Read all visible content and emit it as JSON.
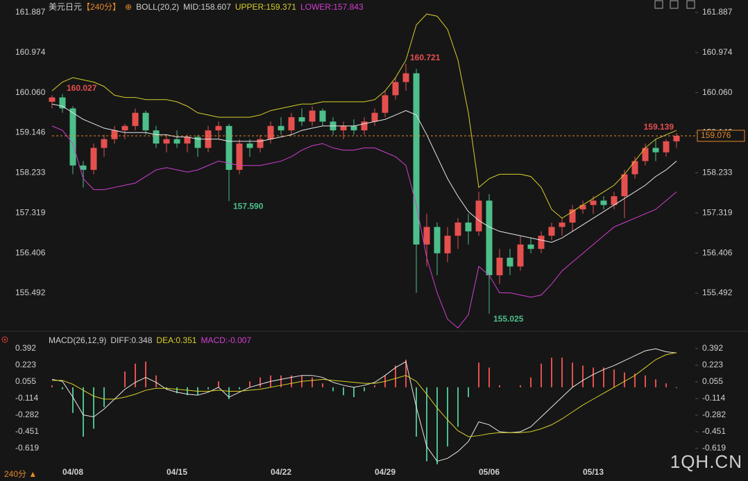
{
  "chart_data": [
    {
      "type": "candlestick",
      "title": "美元日元",
      "period": "【240分】",
      "indicator": "BOLL(20,2)",
      "ylim": [
        154.75,
        162.09
      ],
      "yticks": [
        {
          "value": 161.887,
          "label": "161.887"
        },
        {
          "value": 160.974,
          "label": "160.974"
        },
        {
          "value": 160.06,
          "label": "160.060"
        },
        {
          "value": 159.146,
          "label": "159.146"
        },
        {
          "value": 158.233,
          "label": "158.233"
        },
        {
          "value": 157.319,
          "label": "157.319"
        },
        {
          "value": 156.406,
          "label": "156.406"
        },
        {
          "value": 155.492,
          "label": "155.492"
        }
      ],
      "up_color": "#e5504f",
      "down_color": "#4dbf8b",
      "ohlc": [
        [
          159.85,
          160.0,
          159.7,
          159.95
        ],
        [
          159.95,
          160.027,
          159.6,
          159.7
        ],
        [
          159.7,
          159.75,
          158.2,
          158.4
        ],
        [
          158.4,
          158.5,
          157.9,
          158.3
        ],
        [
          158.3,
          158.9,
          158.2,
          158.8
        ],
        [
          158.8,
          159.1,
          158.6,
          159.0
        ],
        [
          159.0,
          159.3,
          158.9,
          159.2
        ],
        [
          159.2,
          159.35,
          159.0,
          159.3
        ],
        [
          159.3,
          159.7,
          159.2,
          159.6
        ],
        [
          159.6,
          159.65,
          159.1,
          159.2
        ],
        [
          159.2,
          159.3,
          158.8,
          158.9
        ],
        [
          158.9,
          159.1,
          158.7,
          159.0
        ],
        [
          159.0,
          159.2,
          158.8,
          158.9
        ],
        [
          158.9,
          159.1,
          158.7,
          159.05
        ],
        [
          159.05,
          159.1,
          158.6,
          158.8
        ],
        [
          158.8,
          159.3,
          158.7,
          159.2
        ],
        [
          159.2,
          159.4,
          159.0,
          159.3
        ],
        [
          159.3,
          159.35,
          157.59,
          158.3
        ],
        [
          158.3,
          159.0,
          158.2,
          158.9
        ],
        [
          158.9,
          159.0,
          158.6,
          158.8
        ],
        [
          158.8,
          159.1,
          158.7,
          159.0
        ],
        [
          159.0,
          159.4,
          158.9,
          159.3
        ],
        [
          159.3,
          159.5,
          159.1,
          159.2
        ],
        [
          159.2,
          159.6,
          159.1,
          159.5
        ],
        [
          159.5,
          159.7,
          159.3,
          159.4
        ],
        [
          159.4,
          159.75,
          159.3,
          159.65
        ],
        [
          159.65,
          159.7,
          159.3,
          159.4
        ],
        [
          159.4,
          159.5,
          159.1,
          159.2
        ],
        [
          159.2,
          159.4,
          159.0,
          159.3
        ],
        [
          159.3,
          159.45,
          159.1,
          159.2
        ],
        [
          159.2,
          159.5,
          159.1,
          159.4
        ],
        [
          159.4,
          159.7,
          159.3,
          159.6
        ],
        [
          159.6,
          160.1,
          159.5,
          160.0
        ],
        [
          160.0,
          160.4,
          159.9,
          160.3
        ],
        [
          160.3,
          160.721,
          160.1,
          160.5
        ],
        [
          160.5,
          160.6,
          155.5,
          156.6
        ],
        [
          156.6,
          157.3,
          156.1,
          157.0
        ],
        [
          157.0,
          157.1,
          155.9,
          156.4
        ],
        [
          156.4,
          157.0,
          156.2,
          156.8
        ],
        [
          156.8,
          157.2,
          156.5,
          157.1
        ],
        [
          157.1,
          157.3,
          156.6,
          156.9
        ],
        [
          156.9,
          157.8,
          156.8,
          157.6
        ],
        [
          157.6,
          157.75,
          155.025,
          155.9
        ],
        [
          155.9,
          156.5,
          155.7,
          156.3
        ],
        [
          156.3,
          156.5,
          155.9,
          156.1
        ],
        [
          156.1,
          156.8,
          156.0,
          156.6
        ],
        [
          156.6,
          156.75,
          156.4,
          156.5
        ],
        [
          156.5,
          156.9,
          156.4,
          156.8
        ],
        [
          156.8,
          157.1,
          156.7,
          157.0
        ],
        [
          157.0,
          157.2,
          156.8,
          157.1
        ],
        [
          157.1,
          157.5,
          156.9,
          157.4
        ],
        [
          157.4,
          157.6,
          157.3,
          157.5
        ],
        [
          157.5,
          157.7,
          157.3,
          157.6
        ],
        [
          157.6,
          157.7,
          157.4,
          157.5
        ],
        [
          157.5,
          157.8,
          157.4,
          157.7
        ],
        [
          157.7,
          158.3,
          157.2,
          158.2
        ],
        [
          158.2,
          158.6,
          158.1,
          158.5
        ],
        [
          158.5,
          158.9,
          158.4,
          158.8
        ],
        [
          158.8,
          159.0,
          158.5,
          158.7
        ],
        [
          158.7,
          159.0,
          158.6,
          158.95
        ],
        [
          158.95,
          159.139,
          158.8,
          159.076
        ]
      ],
      "series": [
        {
          "name": "MID:158.607",
          "color": "#e8e8e8",
          "values": [
            159.8,
            159.75,
            159.6,
            159.45,
            159.35,
            159.25,
            159.2,
            159.15,
            159.15,
            159.15,
            159.1,
            159.1,
            159.05,
            159.05,
            159.0,
            159.0,
            159.0,
            158.95,
            158.95,
            158.95,
            158.95,
            159.0,
            159.05,
            159.1,
            159.2,
            159.25,
            159.3,
            159.3,
            159.3,
            159.3,
            159.35,
            159.4,
            159.45,
            159.55,
            159.65,
            159.55,
            159.1,
            158.6,
            158.1,
            157.7,
            157.35,
            157.15,
            157.0,
            156.9,
            156.85,
            156.8,
            156.75,
            156.7,
            156.65,
            156.75,
            156.9,
            157.05,
            157.2,
            157.35,
            157.5,
            157.65,
            157.8,
            157.95,
            158.15,
            158.3,
            158.5
          ]
        },
        {
          "name": "UPPER:159.371",
          "color": "#d9cf2a",
          "values": [
            160.1,
            160.3,
            160.4,
            160.35,
            160.3,
            160.2,
            160.0,
            159.95,
            159.95,
            159.9,
            159.9,
            159.9,
            159.85,
            159.75,
            159.6,
            159.55,
            159.5,
            159.5,
            159.5,
            159.5,
            159.55,
            159.65,
            159.7,
            159.75,
            159.8,
            159.8,
            159.85,
            159.85,
            159.85,
            159.85,
            159.85,
            159.9,
            160.1,
            160.4,
            160.8,
            161.6,
            161.85,
            161.8,
            161.5,
            160.8,
            159.6,
            157.9,
            158.1,
            158.2,
            158.2,
            158.2,
            158.15,
            157.9,
            157.4,
            157.2,
            157.35,
            157.5,
            157.65,
            157.8,
            157.95,
            158.2,
            158.5,
            158.8,
            159.0,
            159.1,
            159.2
          ]
        },
        {
          "name": "LOWER:157.843",
          "color": "#d23fd2",
          "values": [
            159.3,
            159.2,
            158.9,
            158.1,
            157.85,
            157.85,
            157.9,
            157.95,
            158.0,
            158.15,
            158.3,
            158.35,
            158.3,
            158.25,
            158.3,
            158.4,
            158.5,
            158.45,
            158.4,
            158.4,
            158.4,
            158.45,
            158.5,
            158.6,
            158.75,
            158.85,
            158.9,
            158.8,
            158.75,
            158.75,
            158.8,
            158.8,
            158.7,
            158.6,
            158.4,
            157.5,
            156.3,
            155.5,
            154.9,
            154.7,
            155.0,
            156.1,
            155.9,
            155.5,
            155.5,
            155.45,
            155.4,
            155.45,
            155.7,
            156.0,
            156.2,
            156.4,
            156.6,
            156.8,
            157.0,
            157.1,
            157.2,
            157.3,
            157.4,
            157.6,
            157.8
          ]
        }
      ],
      "annotations": [
        {
          "value": 160.027,
          "label": "160.027"
        },
        {
          "value": 157.59,
          "label": "157.590"
        },
        {
          "value": 160.721,
          "label": "160.721"
        },
        {
          "value": 155.025,
          "label": "155.025"
        },
        {
          "value": 159.139,
          "label": "159.139"
        }
      ],
      "last_price": 159.076,
      "last_color": "#e58a2a"
    },
    {
      "type": "macd",
      "title": "MACD(26,12,9)",
      "ylim": [
        -0.795,
        0.483
      ],
      "yticks": [
        0.392,
        0.223,
        0.055,
        -0.114,
        -0.282,
        -0.451,
        -0.619
      ],
      "categories": [
        null,
        null,
        "04/08",
        null,
        null,
        null,
        null,
        null,
        null,
        null,
        null,
        null,
        "04/15",
        null,
        null,
        null,
        null,
        null,
        null,
        null,
        null,
        null,
        "04/22",
        null,
        null,
        null,
        null,
        null,
        null,
        null,
        null,
        null,
        "04/29",
        null,
        null,
        null,
        null,
        null,
        null,
        null,
        null,
        null,
        "05/06",
        null,
        null,
        null,
        null,
        null,
        null,
        null,
        null,
        null,
        "05/13",
        null,
        null,
        null,
        null,
        null,
        null,
        null,
        null
      ],
      "series": [
        {
          "name": "DIFF:0.348",
          "color": "#e8e8e8",
          "values": [
            0.08,
            0.06,
            -0.1,
            -0.28,
            -0.3,
            -0.22,
            -0.12,
            -0.02,
            0.05,
            0.1,
            0.05,
            -0.02,
            -0.05,
            -0.07,
            -0.08,
            -0.05,
            0.0,
            -0.1,
            -0.05,
            0.0,
            0.03,
            0.06,
            0.08,
            0.1,
            0.12,
            0.12,
            0.1,
            0.05,
            0.02,
            0.0,
            0.02,
            0.05,
            0.12,
            0.2,
            0.26,
            -0.2,
            -0.6,
            -0.75,
            -0.72,
            -0.65,
            -0.55,
            -0.35,
            -0.38,
            -0.45,
            -0.46,
            -0.45,
            -0.4,
            -0.3,
            -0.2,
            -0.1,
            0.0,
            0.07,
            0.13,
            0.18,
            0.22,
            0.27,
            0.32,
            0.37,
            0.39,
            0.36,
            0.348
          ]
        },
        {
          "name": "DEA:0.351",
          "color": "#d9cf2a",
          "values": [
            0.07,
            0.07,
            0.03,
            -0.03,
            -0.09,
            -0.12,
            -0.12,
            -0.1,
            -0.07,
            -0.03,
            -0.01,
            -0.01,
            -0.02,
            -0.03,
            -0.04,
            -0.04,
            -0.03,
            -0.04,
            -0.04,
            -0.03,
            -0.02,
            0.0,
            0.02,
            0.04,
            0.06,
            0.07,
            0.08,
            0.07,
            0.06,
            0.05,
            0.04,
            0.04,
            0.06,
            0.09,
            0.12,
            0.06,
            -0.07,
            -0.21,
            -0.33,
            -0.44,
            -0.5,
            -0.49,
            -0.47,
            -0.46,
            -0.46,
            -0.46,
            -0.45,
            -0.42,
            -0.38,
            -0.32,
            -0.25,
            -0.18,
            -0.12,
            -0.06,
            0.0,
            0.06,
            0.12,
            0.2,
            0.28,
            0.33,
            0.351
          ]
        }
      ],
      "histogram": {
        "name": "MACD:-0.007",
        "color": "#d23fd2",
        "up_color": "#e5504f",
        "down_color": "#4dbf8b",
        "values": [
          0.02,
          -0.02,
          -0.26,
          -0.5,
          -0.42,
          -0.2,
          0.0,
          0.16,
          0.24,
          0.26,
          0.12,
          -0.02,
          -0.06,
          -0.08,
          -0.08,
          -0.02,
          0.06,
          -0.12,
          -0.02,
          0.06,
          0.1,
          0.12,
          0.12,
          0.12,
          0.12,
          0.1,
          0.04,
          -0.04,
          -0.08,
          -0.1,
          -0.04,
          0.02,
          0.12,
          0.22,
          0.28,
          -0.5,
          -0.75,
          -0.78,
          -0.6,
          -0.4,
          -0.1,
          0.25,
          0.2,
          0.02,
          0.0,
          0.02,
          0.1,
          0.24,
          0.3,
          0.3,
          0.25,
          0.22,
          0.2,
          0.2,
          0.18,
          0.15,
          0.14,
          0.12,
          0.08,
          0.04,
          -0.007
        ]
      }
    }
  ],
  "footer": {
    "period": "240分",
    "watermark": "1QH.CN"
  }
}
